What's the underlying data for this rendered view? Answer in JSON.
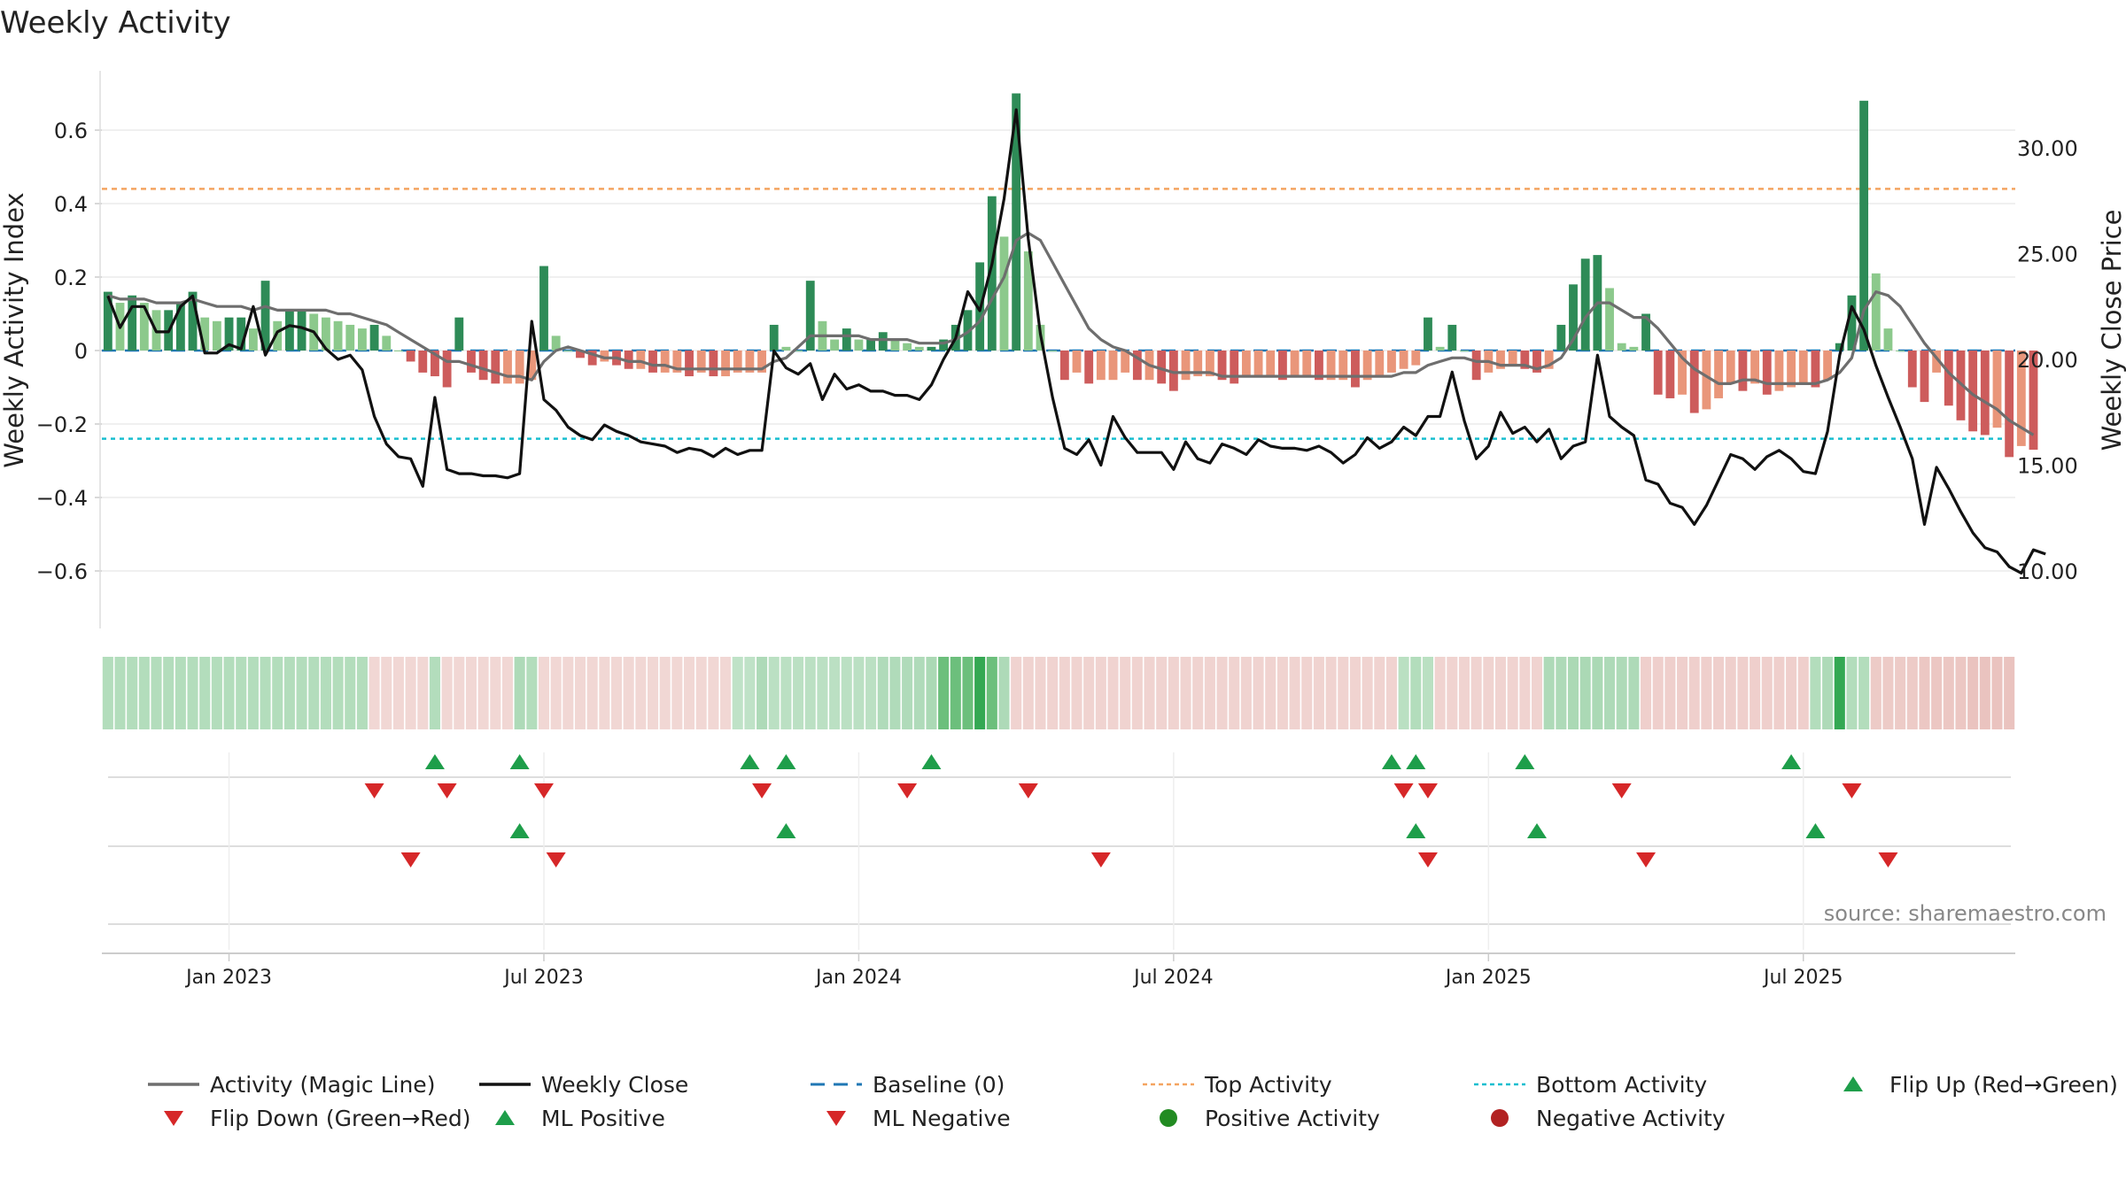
{
  "title": "Weekly Activity",
  "source": "source: sharemaestro.com",
  "colors": {
    "pos_strong": "#2e8b57",
    "pos_light": "#8cc98c",
    "neg_strong": "#cd5c5c",
    "neg_light": "#e9967a",
    "magic": "#6e6e6e",
    "close": "#111111",
    "baseline": "#1f77b4",
    "top": "#f4a460",
    "bottom": "#17becf",
    "flip_up": "#1e9e4a",
    "flip_down": "#d62728",
    "pos_dot": "#228b22",
    "neg_dot": "#b22222"
  },
  "chart_data": {
    "type": "bar",
    "title": "Weekly Activity",
    "ylabel": "Weekly Activity Index",
    "y2label": "Weekly Close Price",
    "ylim": [
      -0.76,
      0.76
    ],
    "y2lim": [
      8,
      33
    ],
    "yticks": [
      0.6,
      0.4,
      0.2,
      0,
      -0.2,
      -0.4,
      -0.6
    ],
    "ytick_labels": [
      "0.6",
      "0.4",
      "0.2",
      "0",
      "−0.2",
      "−0.4",
      "−0.6"
    ],
    "y2ticks": [
      30,
      25,
      20,
      15,
      10
    ],
    "y2tick_labels": [
      "30.00",
      "25.00",
      "20.00",
      "15.00",
      "10.00"
    ],
    "top_activity": 0.44,
    "bottom_activity": -0.24,
    "xticks": [
      {
        "label": "Jan 2023",
        "week": 10
      },
      {
        "label": "Jul 2023",
        "week": 36
      },
      {
        "label": "Jan 2024",
        "week": 62
      },
      {
        "label": "Jul 2024",
        "week": 88
      },
      {
        "label": "Jan 2025",
        "week": 114
      },
      {
        "label": "Jul 2025",
        "week": 140
      }
    ],
    "weeks": 158,
    "activity": [
      0.16,
      0.13,
      0.15,
      0.13,
      0.11,
      0.11,
      0.13,
      0.16,
      0.09,
      0.08,
      0.09,
      0.09,
      0.06,
      0.19,
      0.08,
      0.11,
      0.11,
      0.1,
      0.09,
      0.08,
      0.07,
      0.06,
      0.07,
      0.04,
      0,
      -0.03,
      -0.06,
      -0.07,
      -0.1,
      0.09,
      -0.06,
      -0.08,
      -0.09,
      -0.09,
      -0.09,
      -0.08,
      0.23,
      0.04,
      0,
      -0.02,
      -0.04,
      -0.03,
      -0.04,
      -0.05,
      -0.05,
      -0.06,
      -0.06,
      -0.06,
      -0.07,
      -0.06,
      -0.07,
      -0.07,
      -0.06,
      -0.06,
      -0.06,
      0.07,
      0.01,
      0,
      0.19,
      0.08,
      0.03,
      0.06,
      0.03,
      0.03,
      0.05,
      0.03,
      0.02,
      0.01,
      0.01,
      0.03,
      0.07,
      0.11,
      0.24,
      0.42,
      0.31,
      0.7,
      0.27,
      0.07,
      0,
      -0.08,
      -0.06,
      -0.09,
      -0.08,
      -0.08,
      -0.06,
      -0.08,
      -0.08,
      -0.09,
      -0.11,
      -0.08,
      -0.07,
      -0.07,
      -0.08,
      -0.09,
      -0.07,
      -0.07,
      -0.07,
      -0.08,
      -0.07,
      -0.07,
      -0.08,
      -0.08,
      -0.08,
      -0.1,
      -0.08,
      -0.07,
      -0.06,
      -0.05,
      -0.04,
      0.09,
      0.01,
      0.07,
      0,
      -0.08,
      -0.06,
      -0.05,
      -0.04,
      -0.05,
      -0.06,
      -0.05,
      0.07,
      0.18,
      0.25,
      0.26,
      0.17,
      0.02,
      0.01,
      0.1,
      -0.12,
      -0.13,
      -0.12,
      -0.17,
      -0.16,
      -0.13,
      -0.09,
      -0.11,
      -0.09,
      -0.12,
      -0.11,
      -0.1,
      -0.09,
      -0.1,
      -0.08,
      0.02,
      0.15,
      0.68,
      0.21,
      0.06,
      0,
      -0.1,
      -0.14,
      -0.06,
      -0.15,
      -0.19,
      -0.22,
      -0.23,
      -0.21,
      -0.29,
      -0.26,
      -0.27
    ],
    "magic_line": [
      0.15,
      0.14,
      0.14,
      0.14,
      0.13,
      0.13,
      0.13,
      0.14,
      0.13,
      0.12,
      0.12,
      0.12,
      0.11,
      0.12,
      0.11,
      0.11,
      0.11,
      0.11,
      0.11,
      0.1,
      0.1,
      0.09,
      0.08,
      0.07,
      0.05,
      0.03,
      0.01,
      -0.01,
      -0.03,
      -0.03,
      -0.04,
      -0.05,
      -0.06,
      -0.07,
      -0.07,
      -0.08,
      -0.03,
      0,
      0.01,
      0,
      -0.01,
      -0.02,
      -0.02,
      -0.03,
      -0.03,
      -0.04,
      -0.04,
      -0.05,
      -0.05,
      -0.05,
      -0.05,
      -0.05,
      -0.05,
      -0.05,
      -0.05,
      -0.03,
      -0.02,
      0.01,
      0.04,
      0.04,
      0.04,
      0.04,
      0.04,
      0.03,
      0.03,
      0.03,
      0.03,
      0.02,
      0.02,
      0.02,
      0.03,
      0.05,
      0.08,
      0.14,
      0.2,
      0.3,
      0.32,
      0.3,
      0.24,
      0.18,
      0.12,
      0.06,
      0.03,
      0.01,
      0,
      -0.02,
      -0.04,
      -0.05,
      -0.06,
      -0.06,
      -0.06,
      -0.06,
      -0.07,
      -0.07,
      -0.07,
      -0.07,
      -0.07,
      -0.07,
      -0.07,
      -0.07,
      -0.07,
      -0.07,
      -0.07,
      -0.07,
      -0.07,
      -0.07,
      -0.07,
      -0.06,
      -0.06,
      -0.04,
      -0.03,
      -0.02,
      -0.02,
      -0.03,
      -0.03,
      -0.04,
      -0.04,
      -0.04,
      -0.05,
      -0.04,
      -0.02,
      0.03,
      0.09,
      0.13,
      0.13,
      0.11,
      0.09,
      0.09,
      0.06,
      0.02,
      -0.02,
      -0.05,
      -0.07,
      -0.09,
      -0.09,
      -0.08,
      -0.08,
      -0.09,
      -0.09,
      -0.09,
      -0.09,
      -0.09,
      -0.08,
      -0.06,
      -0.02,
      0.11,
      0.16,
      0.15,
      0.12,
      0.07,
      0.02,
      -0.02,
      -0.06,
      -0.09,
      -0.12,
      -0.14,
      -0.16,
      -0.19,
      -0.21,
      -0.23
    ],
    "weekly_close": [
      23,
      21.5,
      22.5,
      22.5,
      21.3,
      21.3,
      22.5,
      23,
      20.3,
      20.3,
      20.7,
      20.5,
      22.5,
      20.2,
      21.3,
      21.6,
      21.5,
      21.3,
      20.5,
      20,
      20.2,
      19.5,
      17.3,
      16,
      15.4,
      15.3,
      14,
      18.2,
      14.8,
      14.6,
      14.6,
      14.5,
      14.5,
      14.4,
      14.6,
      21.8,
      18.1,
      17.6,
      16.8,
      16.4,
      16.2,
      16.9,
      16.6,
      16.4,
      16.1,
      16,
      15.9,
      15.6,
      15.8,
      15.7,
      15.4,
      15.8,
      15.5,
      15.7,
      15.7,
      20.4,
      19.6,
      19.3,
      19.8,
      18.1,
      19.3,
      18.6,
      18.8,
      18.5,
      18.5,
      18.3,
      18.3,
      18.1,
      18.8,
      20,
      21,
      23.2,
      22.3,
      24.5,
      27.6,
      31.8,
      25.7,
      21.2,
      18.2,
      15.8,
      15.5,
      16.2,
      15,
      17.3,
      16.3,
      15.6,
      15.6,
      15.6,
      14.8,
      16.1,
      15.3,
      15.1,
      16,
      15.8,
      15.5,
      16.2,
      15.9,
      15.8,
      15.8,
      15.7,
      15.9,
      15.6,
      15.1,
      15.5,
      16.3,
      15.8,
      16.1,
      16.8,
      16.4,
      17.3,
      17.3,
      19.4,
      17.1,
      15.3,
      15.9,
      17.5,
      16.5,
      16.8,
      16.1,
      16.7,
      15.3,
      15.9,
      16.1,
      20.2,
      17.3,
      16.8,
      16.4,
      14.3,
      14.1,
      13.2,
      13,
      12.2,
      13.1,
      14.3,
      15.5,
      15.3,
      14.8,
      15.4,
      15.7,
      15.3,
      14.7,
      14.6,
      16.6,
      20.2,
      22.5,
      21.4,
      19.7,
      18.2,
      16.8,
      15.3,
      12.2,
      14.9,
      13.9,
      12.8,
      11.8,
      11.1,
      10.9,
      10.2,
      9.9,
      11,
      10.8
    ],
    "shading": [
      0.6,
      0.6,
      0.6,
      0.6,
      0.6,
      0.6,
      0.6,
      0.6,
      0.6,
      0.6,
      0.6,
      0.6,
      0.6,
      0.6,
      0.6,
      0.6,
      0.6,
      0.6,
      0.6,
      0.6,
      0.6,
      0.6,
      -0.5,
      -0.5,
      -0.5,
      -0.5,
      -0.5,
      0.6,
      -0.5,
      -0.5,
      -0.5,
      -0.5,
      -0.5,
      -0.5,
      0.7,
      0.6,
      -0.5,
      -0.5,
      -0.5,
      -0.5,
      -0.5,
      -0.5,
      -0.5,
      -0.5,
      -0.5,
      -0.5,
      -0.5,
      -0.5,
      -0.5,
      -0.5,
      -0.5,
      -0.5,
      0.4,
      0.4,
      0.7,
      0.45,
      0.45,
      0.45,
      0.45,
      0.45,
      0.45,
      0.45,
      0.45,
      0.45,
      0.65,
      0.65,
      0.65,
      0.65,
      0.75,
      0.8,
      0.85,
      0.9,
      1,
      0.8,
      0.7,
      -0.55,
      -0.55,
      -0.55,
      -0.55,
      -0.55,
      -0.55,
      -0.55,
      -0.55,
      -0.55,
      -0.55,
      -0.55,
      -0.55,
      -0.55,
      -0.55,
      -0.55,
      -0.55,
      -0.55,
      -0.55,
      -0.55,
      -0.55,
      -0.55,
      -0.55,
      -0.55,
      -0.55,
      -0.55,
      -0.55,
      -0.55,
      -0.55,
      -0.55,
      -0.55,
      -0.55,
      -0.55,
      0.5,
      0.6,
      0.5,
      -0.55,
      -0.55,
      -0.55,
      -0.55,
      -0.55,
      -0.55,
      -0.55,
      -0.55,
      -0.55,
      0.7,
      0.7,
      0.75,
      0.75,
      0.75,
      0.7,
      0.7,
      0.7,
      -0.6,
      -0.6,
      -0.6,
      -0.6,
      -0.6,
      -0.6,
      -0.6,
      -0.6,
      -0.6,
      -0.6,
      -0.6,
      -0.6,
      -0.6,
      -0.6,
      0.6,
      0.7,
      1,
      0.6,
      0.6,
      -0.65,
      -0.65,
      -0.65,
      -0.65,
      -0.7,
      -0.7,
      -0.7,
      -0.7,
      -0.75,
      -0.75,
      -0.75,
      -0.75
    ],
    "flip_up_weeks": [
      27,
      34,
      53,
      56,
      68,
      106,
      108,
      117,
      139
    ],
    "flip_down_weeks": [
      22,
      28,
      36,
      54,
      66,
      76,
      107,
      109,
      125,
      144
    ],
    "ml_positive_weeks": [
      34,
      56,
      108,
      118,
      141
    ],
    "ml_negative_weeks": [
      25,
      37,
      82,
      109,
      127,
      147
    ],
    "positive_activity_weeks": [],
    "negative_activity_weeks": [],
    "legend": [
      {
        "label": "Activity (Magic Line)",
        "kind": "line-gray"
      },
      {
        "label": "Weekly Close",
        "kind": "line-black"
      },
      {
        "label": "Baseline (0)",
        "kind": "dash-blue"
      },
      {
        "label": "Top Activity",
        "kind": "dot-orange"
      },
      {
        "label": "Bottom Activity",
        "kind": "dot-cyan"
      },
      {
        "label": "Flip Up (Red→Green)",
        "kind": "tri-up"
      },
      {
        "label": "Flip Down (Green→Red)",
        "kind": "tri-down"
      },
      {
        "label": "ML Positive",
        "kind": "tri-up"
      },
      {
        "label": "ML Negative",
        "kind": "tri-down"
      },
      {
        "label": "Positive Activity",
        "kind": "circle-green"
      },
      {
        "label": "Negative Activity",
        "kind": "circle-red"
      }
    ]
  }
}
